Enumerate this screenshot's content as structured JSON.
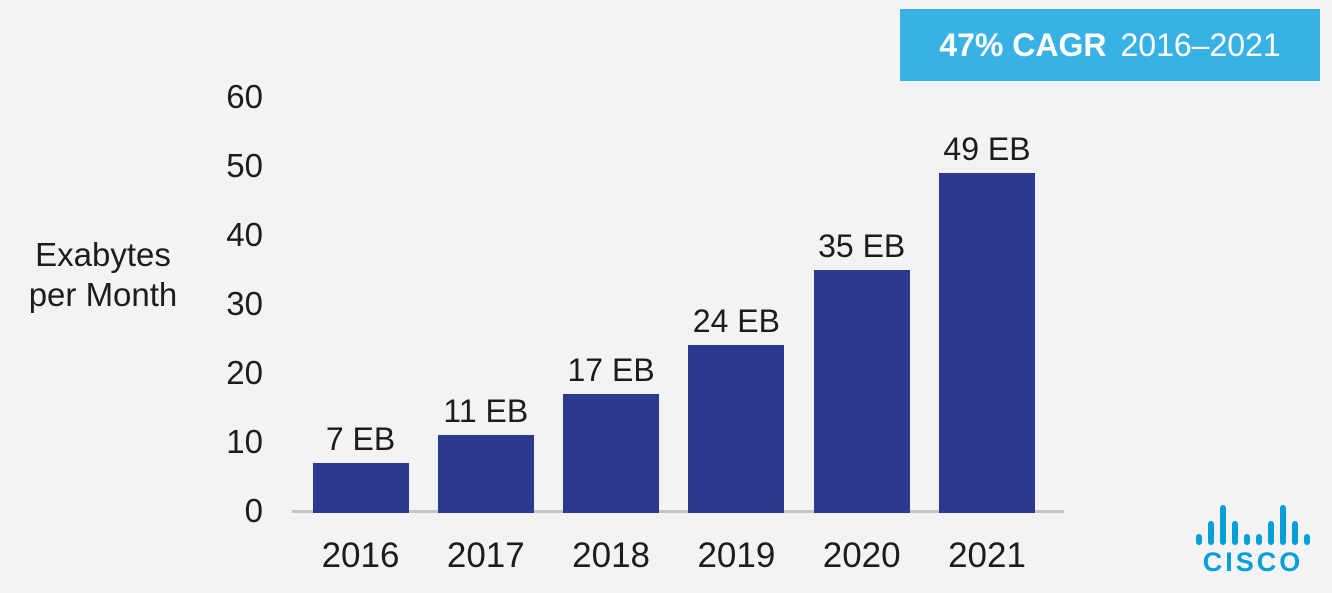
{
  "chart_data": {
    "type": "bar",
    "categories": [
      "2016",
      "2017",
      "2018",
      "2019",
      "2020",
      "2021"
    ],
    "values": [
      7,
      11,
      17,
      24,
      35,
      49
    ],
    "bar_labels": [
      "7 EB",
      "11 EB",
      "17 EB",
      "24 EB",
      "35 EB",
      "49 EB"
    ],
    "title": "",
    "xlabel": "",
    "ylabel": "Exabytes per Month",
    "ylabel_lines": [
      "Exabytes",
      "per Month"
    ],
    "yticks": [
      0,
      10,
      20,
      30,
      40,
      50,
      60
    ],
    "ylim": [
      0,
      60
    ],
    "grid": false,
    "legend": "none",
    "bar_color": "#2b3a90",
    "axis_line_color": "#c5c5c7",
    "background_color": "#f3f3f4",
    "text_color": "#1c1c1e"
  },
  "badge": {
    "cagr_label": "47% CAGR",
    "range_label": "2016–2021",
    "bg_color": "#38b2e5",
    "text_color": "#ffffff"
  },
  "logo": {
    "text": "cisco",
    "color": "#049fd9"
  }
}
